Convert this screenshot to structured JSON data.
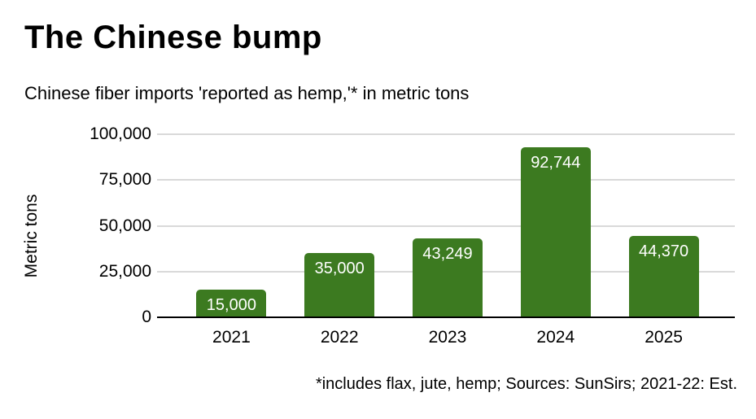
{
  "chart_data": {
    "type": "bar",
    "title": "The Chinese bump",
    "subtitle": "Chinese fiber imports 'reported as hemp,'* in metric tons",
    "ylabel": "Metric tons",
    "xlabel": "",
    "categories": [
      "2021",
      "2022",
      "2023",
      "2024",
      "2025"
    ],
    "values": [
      15000,
      35000,
      43249,
      92744,
      44370
    ],
    "value_labels": [
      "15,000",
      "35,000",
      "43,249",
      "92,744",
      "44,370"
    ],
    "ylim": [
      0,
      100000
    ],
    "yticks": [
      0,
      25000,
      50000,
      75000,
      100000
    ],
    "ytick_labels": [
      "0",
      "25,000",
      "50,000",
      "75,000",
      "100,000"
    ],
    "grid": true,
    "legend": "none",
    "bar_color": "#3c7a20",
    "bar_label_color": "#ffffff",
    "gridline_color": "#d9d9d9",
    "axis_line_color": "#000000",
    "text_color": "#000000",
    "note": "*includes flax, jute, hemp; Sources: SunSirs; 2021-22: Est."
  }
}
